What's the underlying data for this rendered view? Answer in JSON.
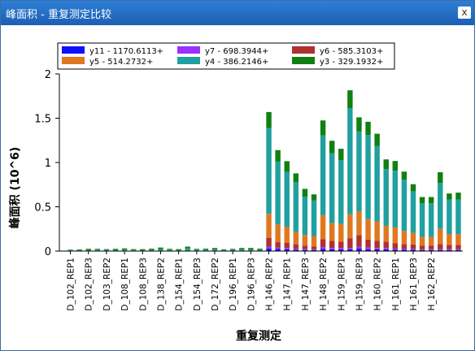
{
  "window": {
    "title": "峰面积 - 重复测定比较",
    "close_glyph": "x"
  },
  "colors": {
    "titlebar": "#1f6cc7"
  },
  "chart_data": {
    "type": "bar",
    "stacked": true,
    "title": "",
    "xlabel": "重复测定",
    "ylabel": "峰面积 (10^6)",
    "ylim": [
      0,
      2
    ],
    "yticks": [
      "0",
      "0.5",
      "1",
      "1.5",
      "2"
    ],
    "grid": false,
    "legend_position": "top",
    "legend": [
      {
        "label": "y11 - 1170.6113+",
        "color": "#1010ff"
      },
      {
        "label": "y7 - 698.3944+",
        "color": "#9b30ff"
      },
      {
        "label": "y6 - 585.3103+",
        "color": "#b03030"
      },
      {
        "label": "y5 - 514.2732+",
        "color": "#e07820"
      },
      {
        "label": "y4 - 386.2146+",
        "color": "#20a0a0"
      },
      {
        "label": "y3 - 329.1932+",
        "color": "#108010"
      }
    ],
    "tick_labels": [
      "D_102_REP1",
      "D_102_REP3",
      "D_103_REP2",
      "D_108_REP1",
      "D_108_REP3",
      "D_138_REP2",
      "D_154_REP1",
      "D_154_REP3",
      "D_172_REP2",
      "D_196_REP1",
      "D_196_REP3",
      "H_146_REP2",
      "H_147_REP1",
      "H_147_REP3",
      "H_148_REP2",
      "H_159_REP1",
      "H_159_REP3",
      "H_160_REP2",
      "H_161_REP1",
      "H_161_REP3",
      "H_162_REP2"
    ],
    "tick_positions": [
      0,
      2,
      4,
      6,
      8,
      10,
      12,
      14,
      16,
      18,
      20,
      22,
      24,
      26,
      28,
      30,
      32,
      34,
      36,
      38,
      40
    ],
    "series": [
      {
        "name": "y11 - 1170.6113+",
        "values": [
          0,
          0,
          0,
          0,
          0,
          0,
          0,
          0,
          0,
          0,
          0,
          0,
          0,
          0,
          0,
          0,
          0,
          0,
          0,
          0,
          0,
          0,
          0.03,
          0.025,
          0.02,
          0.015,
          0.012,
          0.01,
          0.025,
          0.02,
          0.02,
          0.02,
          0.03,
          0.02,
          0.02,
          0.02,
          0.015,
          0.015,
          0.015,
          0.01,
          0.01,
          0.01,
          0.01,
          0.01
        ]
      },
      {
        "name": "y7 - 698.3944+",
        "values": [
          0,
          0,
          0,
          0,
          0,
          0,
          0,
          0,
          0,
          0,
          0,
          0,
          0,
          0,
          0,
          0,
          0,
          0,
          0,
          0,
          0,
          0,
          0.02,
          0.015,
          0.015,
          0.012,
          0.01,
          0.01,
          0.02,
          0.015,
          0.015,
          0.015,
          0.02,
          0.02,
          0.015,
          0.015,
          0.012,
          0.012,
          0.01,
          0.01,
          0.01,
          0.01,
          0.01,
          0.01
        ]
      },
      {
        "name": "y6 - 585.3103+",
        "values": [
          0,
          0,
          0,
          0,
          0,
          0,
          0,
          0,
          0,
          0,
          0,
          0,
          0,
          0,
          0,
          0,
          0,
          0,
          0,
          0,
          0,
          0,
          0.1,
          0.06,
          0.06,
          0.05,
          0.04,
          0.03,
          0.09,
          0.08,
          0.07,
          0.11,
          0.13,
          0.09,
          0.08,
          0.07,
          0.06,
          0.05,
          0.05,
          0.04,
          0.04,
          0.06,
          0.05,
          0.05
        ]
      },
      {
        "name": "y5 - 514.2732+",
        "values": [
          0,
          0,
          0,
          0,
          0,
          0,
          0,
          0,
          0,
          0,
          0,
          0,
          0,
          0,
          0,
          0,
          0,
          0,
          0,
          0,
          0,
          0,
          0.27,
          0.2,
          0.18,
          0.14,
          0.12,
          0.12,
          0.27,
          0.2,
          0.2,
          0.27,
          0.27,
          0.23,
          0.22,
          0.18,
          0.18,
          0.15,
          0.13,
          0.1,
          0.1,
          0.17,
          0.12,
          0.12
        ]
      },
      {
        "name": "y4 - 386.2146+",
        "values": [
          0.008,
          0.01,
          0.01,
          0.015,
          0.012,
          0.01,
          0.015,
          0.012,
          0.01,
          0.012,
          0.02,
          0.015,
          0.01,
          0.03,
          0.015,
          0.015,
          0.02,
          0.012,
          0.015,
          0.02,
          0.015,
          0.012,
          0.97,
          0.71,
          0.62,
          0.56,
          0.43,
          0.4,
          0.9,
          0.79,
          0.72,
          1.2,
          0.9,
          0.95,
          0.85,
          0.64,
          0.64,
          0.58,
          0.47,
          0.38,
          0.38,
          0.52,
          0.39,
          0.39
        ]
      },
      {
        "name": "y3 - 329.1932+",
        "values": [
          0.005,
          0.008,
          0.015,
          0.01,
          0.01,
          0.015,
          0.015,
          0.01,
          0.012,
          0.015,
          0.02,
          0.01,
          0.012,
          0.02,
          0.01,
          0.012,
          0.015,
          0.008,
          0.01,
          0.015,
          0.02,
          0.015,
          0.18,
          0.13,
          0.12,
          0.1,
          0.09,
          0.07,
          0.17,
          0.14,
          0.13,
          0.2,
          0.16,
          0.15,
          0.14,
          0.11,
          0.11,
          0.09,
          0.08,
          0.07,
          0.07,
          0.12,
          0.07,
          0.08
        ]
      }
    ]
  }
}
